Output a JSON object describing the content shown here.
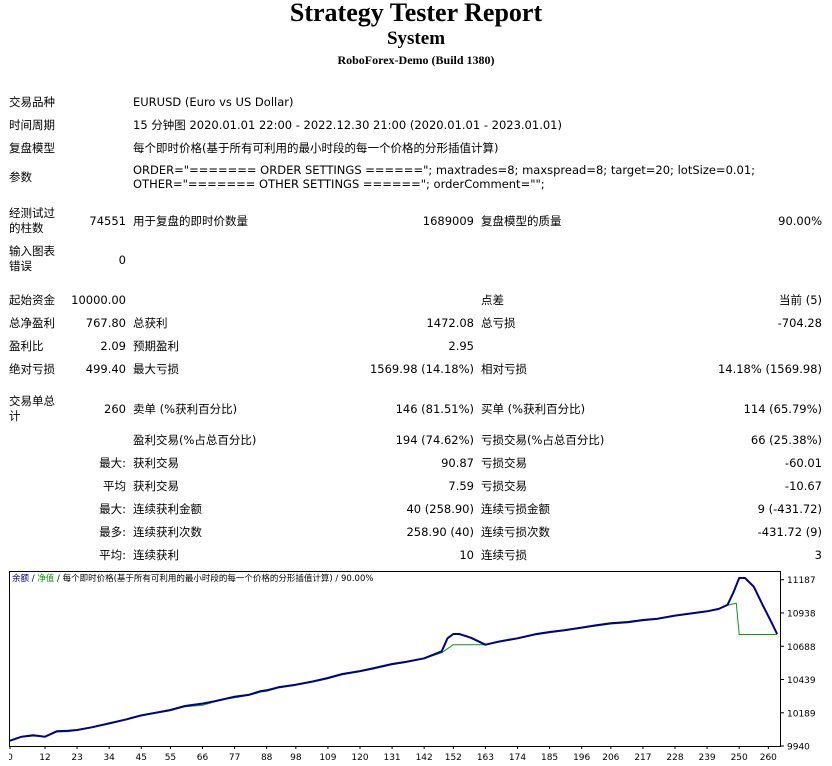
{
  "header": {
    "title": "Strategy Tester Report",
    "subtitle": "System",
    "server": "RoboForex-Demo (Build 1380)"
  },
  "info": {
    "symbol_label": "交易品种",
    "symbol_value": "EURUSD (Euro vs US Dollar)",
    "period_label": "时间周期",
    "period_value": "15 分钟图 2020.01.01 22:00 - 2022.12.30 21:00 (2020.01.01 - 2023.01.01)",
    "model_label": "复盘模型",
    "model_value": "每个即时价格(基于所有可利用的最小时段的每一个价格的分形插值计算)",
    "params_label": "参数",
    "params_line1": "ORDER=\"======= ORDER SETTINGS ======\"; maxtrades=8; maxspread=8; target=20; lotSize=0.01;",
    "params_line2": "OTHER=\"======= OTHER SETTINGS ======\"; orderComment=\"\";"
  },
  "stats1": {
    "bars_label_1": "经测试过",
    "bars_label_2": "的柱数",
    "bars_value": "74551",
    "ticks_label": "用于复盘的即时价数量",
    "ticks_value": "1689009",
    "quality_label": "复盘模型的质量",
    "quality_value": "90.00%",
    "errors_label_1": "输入图表",
    "errors_label_2": "错误",
    "errors_value": "0"
  },
  "stats2": {
    "deposit_label": "起始资金",
    "deposit_value": "10000.00",
    "spread_label": "点差",
    "spread_value": "当前 (5)",
    "net_label": "总净盈利",
    "net_value": "767.80",
    "gross_profit_label": "总获利",
    "gross_profit_value": "1472.08",
    "gross_loss_label": "总亏损",
    "gross_loss_value": "-704.28",
    "pf_label": "盈利比",
    "pf_value": "2.09",
    "payoff_label": "预期盈利",
    "payoff_value": "2.95",
    "abs_dd_label": "绝对亏损",
    "abs_dd_value": "499.40",
    "max_dd_label": "最大亏损",
    "max_dd_value": "1569.98 (14.18%)",
    "rel_dd_label": "相对亏损",
    "rel_dd_value": "14.18% (1569.98)"
  },
  "trades": {
    "total_label_1": "交易单总",
    "total_label_2": "计",
    "total_value": "260",
    "short_label": "卖单 (%获利百分比)",
    "short_value": "146 (81.51%)",
    "long_label": "买单 (%获利百分比)",
    "long_value": "114 (65.79%)",
    "profit_trades_label": "盈利交易(%占总百分比)",
    "profit_trades_value": "194 (74.62%)",
    "loss_trades_label": "亏损交易(%占总百分比)",
    "loss_trades_value": "66 (25.38%)",
    "largest_label": "最大:",
    "largest_profit_label": "获利交易",
    "largest_profit_value": "90.87",
    "largest_loss_label": "亏损交易",
    "largest_loss_value": "-60.01",
    "average_label": "平均",
    "average_profit_label": "获利交易",
    "average_profit_value": "7.59",
    "average_loss_label": "亏损交易",
    "average_loss_value": "-10.67",
    "max_cons_label": "最大:",
    "max_cons_wins_label": "连续获利金额",
    "max_cons_wins_value": "40 (258.90)",
    "max_cons_losses_label": "连续亏损金额",
    "max_cons_losses_value": "9 (-431.72)",
    "max_cons_profit_label_prefix": "最多:",
    "max_cons_profit_label": "连续获利次数",
    "max_cons_profit_value": "258.90 (40)",
    "max_cons_loss_label": "连续亏损次数",
    "max_cons_loss_value": "-431.72 (9)",
    "avg_cons_label": "平均:",
    "avg_cons_wins_label": "连续获利",
    "avg_cons_wins_value": "10",
    "avg_cons_losses_label": "连续亏损",
    "avg_cons_losses_value": "3"
  },
  "chart_data": {
    "type": "line",
    "legend": {
      "balance": "余额",
      "equity": "净值",
      "text": "每个即时价格(基于所有可利用的最小时段的每一个价格的分形插值计算)",
      "quality": "90.00%"
    },
    "x_ticks": [
      0,
      12,
      23,
      34,
      45,
      55,
      66,
      77,
      88,
      98,
      109,
      120,
      131,
      142,
      152,
      163,
      174,
      185,
      196,
      206,
      217,
      228,
      239,
      250,
      260
    ],
    "y_ticks": [
      9940,
      10189,
      10439,
      10688,
      10938,
      11187
    ],
    "xlim": [
      0,
      264
    ],
    "ylim": [
      9940,
      11245
    ],
    "series": [
      {
        "name": "净值",
        "color": "#00008b",
        "values": [
          [
            0,
            9980
          ],
          [
            4,
            10010
          ],
          [
            8,
            10020
          ],
          [
            12,
            10010
          ],
          [
            16,
            10050
          ],
          [
            20,
            10055
          ],
          [
            23,
            10060
          ],
          [
            28,
            10080
          ],
          [
            34,
            10110
          ],
          [
            40,
            10140
          ],
          [
            45,
            10170
          ],
          [
            50,
            10190
          ],
          [
            55,
            10210
          ],
          [
            60,
            10240
          ],
          [
            63,
            10250
          ],
          [
            66,
            10258
          ],
          [
            70,
            10275
          ],
          [
            74,
            10295
          ],
          [
            77,
            10310
          ],
          [
            82,
            10325
          ],
          [
            86,
            10352
          ],
          [
            88,
            10358
          ],
          [
            92,
            10380
          ],
          [
            98,
            10400
          ],
          [
            104,
            10425
          ],
          [
            109,
            10450
          ],
          [
            114,
            10480
          ],
          [
            120,
            10502
          ],
          [
            125,
            10525
          ],
          [
            131,
            10555
          ],
          [
            136,
            10572
          ],
          [
            142,
            10598
          ],
          [
            148,
            10650
          ],
          [
            150,
            10748
          ],
          [
            152,
            10780
          ],
          [
            154,
            10780
          ],
          [
            158,
            10752
          ],
          [
            163,
            10700
          ],
          [
            168,
            10725
          ],
          [
            174,
            10748
          ],
          [
            180,
            10778
          ],
          [
            185,
            10795
          ],
          [
            190,
            10808
          ],
          [
            196,
            10828
          ],
          [
            201,
            10845
          ],
          [
            206,
            10860
          ],
          [
            212,
            10870
          ],
          [
            217,
            10885
          ],
          [
            222,
            10895
          ],
          [
            228,
            10918
          ],
          [
            233,
            10933
          ],
          [
            239,
            10950
          ],
          [
            243,
            10968
          ],
          [
            246,
            10998
          ],
          [
            248,
            11090
          ],
          [
            250,
            11200
          ],
          [
            252,
            11200
          ],
          [
            255,
            11135
          ],
          [
            258,
            11000
          ],
          [
            261,
            10870
          ],
          [
            263,
            10780
          ]
        ]
      },
      {
        "name": "余额",
        "color": "#0a9a0a",
        "values": [
          [
            0,
            9980
          ],
          [
            4,
            10008
          ],
          [
            8,
            10015
          ],
          [
            12,
            10010
          ],
          [
            16,
            10045
          ],
          [
            20,
            10048
          ],
          [
            23,
            10058
          ],
          [
            28,
            10078
          ],
          [
            34,
            10105
          ],
          [
            40,
            10138
          ],
          [
            45,
            10165
          ],
          [
            50,
            10185
          ],
          [
            55,
            10205
          ],
          [
            60,
            10235
          ],
          [
            63,
            10240
          ],
          [
            66,
            10245
          ],
          [
            70,
            10270
          ],
          [
            74,
            10290
          ],
          [
            77,
            10302
          ],
          [
            82,
            10320
          ],
          [
            86,
            10345
          ],
          [
            88,
            10350
          ],
          [
            92,
            10375
          ],
          [
            98,
            10395
          ],
          [
            104,
            10420
          ],
          [
            109,
            10445
          ],
          [
            114,
            10475
          ],
          [
            120,
            10498
          ],
          [
            125,
            10520
          ],
          [
            131,
            10550
          ],
          [
            136,
            10568
          ],
          [
            142,
            10595
          ],
          [
            148,
            10640
          ],
          [
            152,
            10700
          ],
          [
            158,
            10700
          ],
          [
            163,
            10700
          ],
          [
            168,
            10720
          ],
          [
            174,
            10745
          ],
          [
            180,
            10773
          ],
          [
            185,
            10790
          ],
          [
            190,
            10805
          ],
          [
            196,
            10825
          ],
          [
            201,
            10840
          ],
          [
            206,
            10855
          ],
          [
            212,
            10865
          ],
          [
            217,
            10880
          ],
          [
            222,
            10890
          ],
          [
            228,
            10915
          ],
          [
            233,
            10930
          ],
          [
            239,
            10948
          ],
          [
            243,
            10965
          ],
          [
            246,
            10995
          ],
          [
            249,
            11010
          ],
          [
            250,
            10776
          ],
          [
            256,
            10776
          ],
          [
            260,
            10776
          ],
          [
            263,
            10776
          ]
        ]
      }
    ]
  }
}
